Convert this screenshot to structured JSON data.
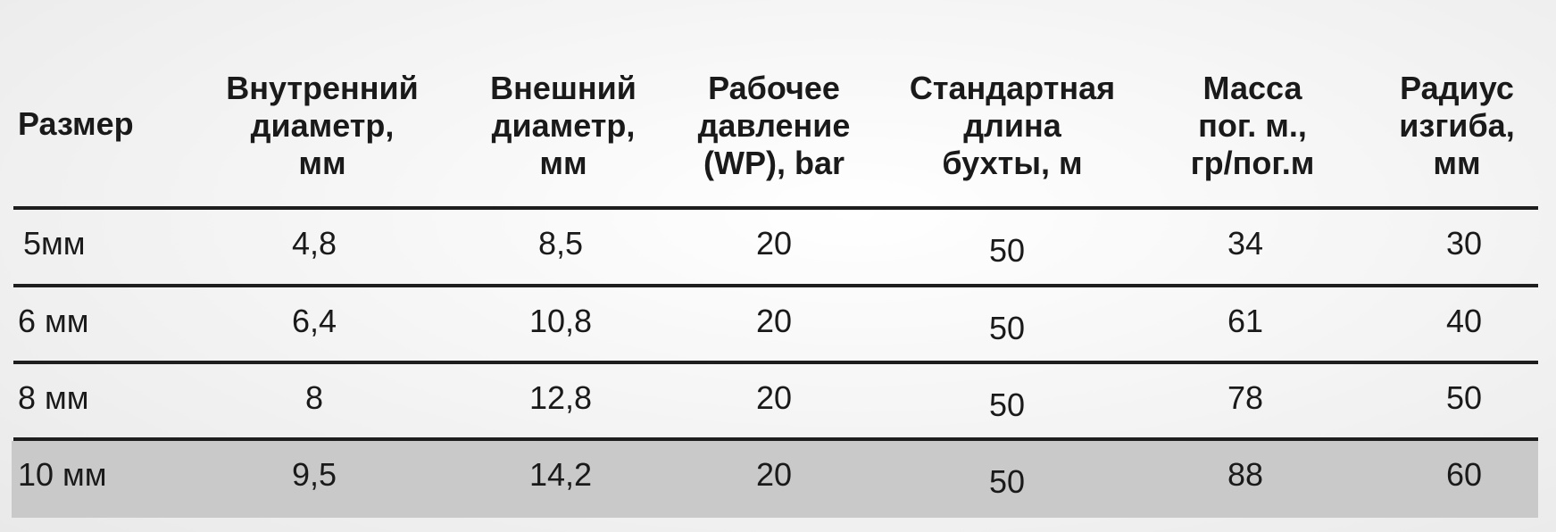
{
  "table": {
    "headers": [
      "Размер",
      "Внутренний\nдиаметр,\nмм",
      "Внешний\nдиаметр,\nмм",
      "Рабочее\nдавление\n(WP), bar",
      "Стандартная\nдлина\nбухты, м",
      "Масса\nпог. м.,\nгр/пог.м",
      "Радиус\nизгиба,\nмм"
    ],
    "rows": [
      [
        "5мм",
        "4,8",
        "8,5",
        "20",
        "50",
        "34",
        "30"
      ],
      [
        "6 мм",
        "6,4",
        "10,8",
        "20",
        "50",
        "61",
        "40"
      ],
      [
        "8 мм",
        "8",
        "12,8",
        "20",
        "50",
        "78",
        "50"
      ],
      [
        "10 мм",
        "9,5",
        "14,2",
        "20",
        "50",
        "88",
        "60"
      ]
    ],
    "highlighted_row_color": "#c9c9c9",
    "rule_color": "#1e1e1e"
  }
}
